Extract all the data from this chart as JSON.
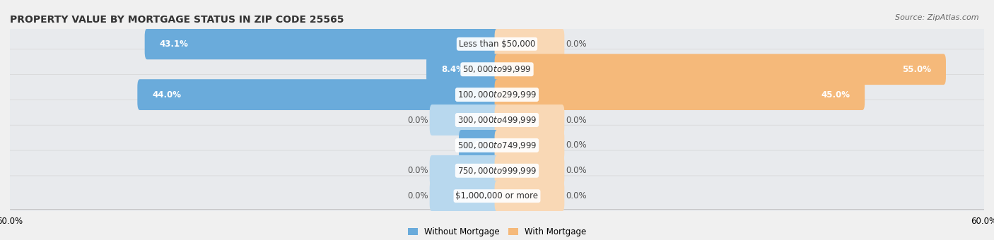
{
  "title": "PROPERTY VALUE BY MORTGAGE STATUS IN ZIP CODE 25565",
  "source": "Source: ZipAtlas.com",
  "categories": [
    "Less than $50,000",
    "$50,000 to $99,999",
    "$100,000 to $299,999",
    "$300,000 to $499,999",
    "$500,000 to $749,999",
    "$750,000 to $999,999",
    "$1,000,000 or more"
  ],
  "without_mortgage": [
    43.1,
    8.4,
    44.0,
    0.0,
    4.4,
    0.0,
    0.0
  ],
  "with_mortgage": [
    0.0,
    55.0,
    45.0,
    0.0,
    0.0,
    0.0,
    0.0
  ],
  "color_without": "#6aabdb",
  "color_with": "#f5b97a",
  "color_without_zero": "#b8d8ee",
  "color_with_zero": "#f9d8b5",
  "axis_limit": 60.0,
  "bg_color": "#f0f0f0",
  "row_bg_even": "#e8e8e8",
  "row_bg_odd": "#f2f2f2",
  "title_fontsize": 10,
  "label_fontsize": 8.5,
  "source_fontsize": 8,
  "legend_fontsize": 8.5,
  "bar_height": 0.62,
  "zero_bar_width": 8.0
}
